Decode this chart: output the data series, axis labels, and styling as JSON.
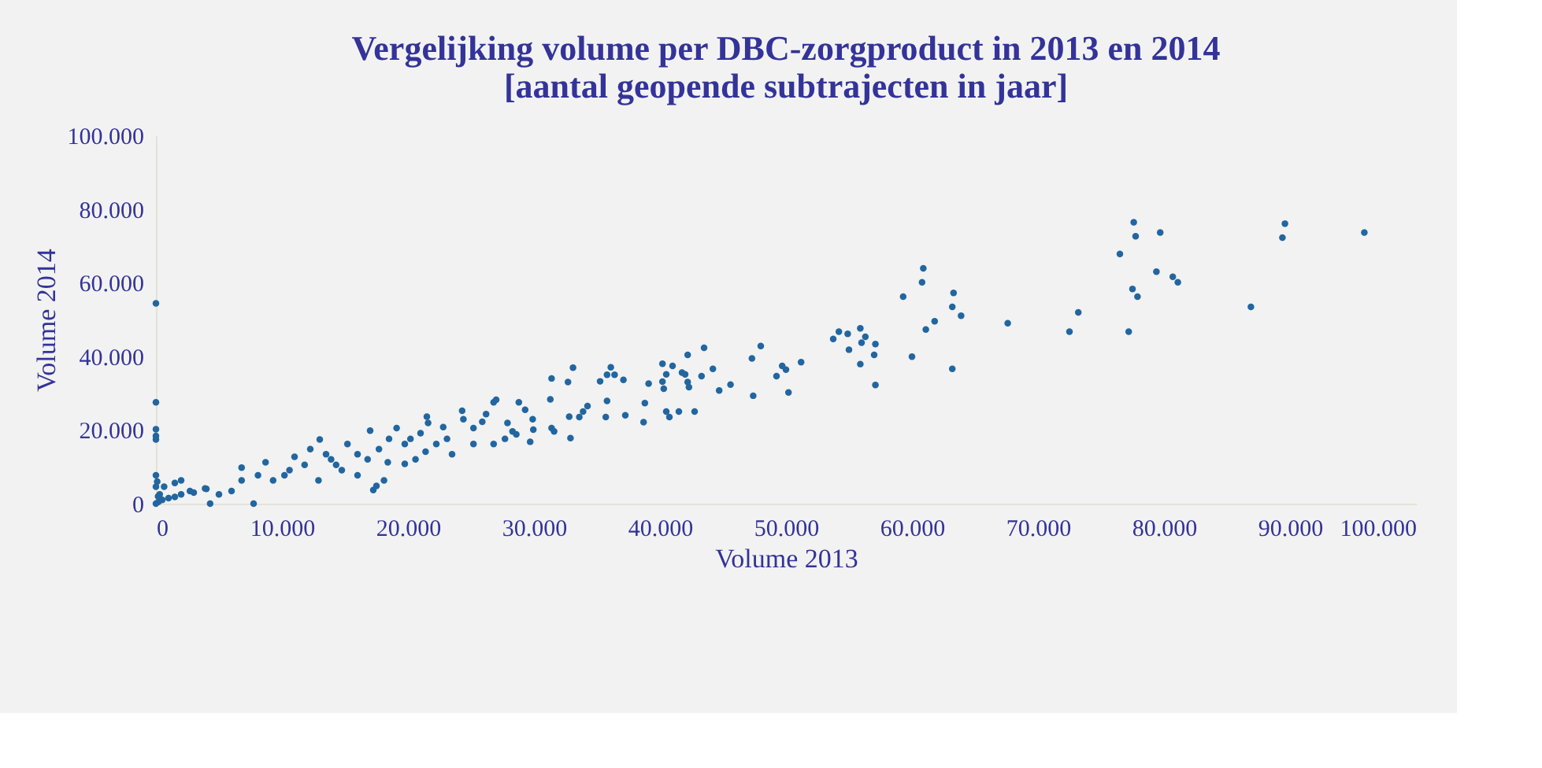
{
  "chart_data": {
    "type": "scatter",
    "title": [
      "Vergelijking volume per DBC-zorgproduct in 2013 en 2014",
      "[aantal geopende subtrajecten in jaar]"
    ],
    "xlabel": "Volume 2013",
    "ylabel": "Volume 2014",
    "marker": "circle",
    "grid": false,
    "legend": false,
    "xlim": [
      0,
      100000
    ],
    "ylim": [
      0,
      100000
    ],
    "xticks": [
      {
        "value": 0,
        "label": "0"
      },
      {
        "value": 10000,
        "label": "10.000"
      },
      {
        "value": 20000,
        "label": "20.000"
      },
      {
        "value": 30000,
        "label": "30.000"
      },
      {
        "value": 40000,
        "label": "40.000"
      },
      {
        "value": 50000,
        "label": "50.000"
      },
      {
        "value": 60000,
        "label": "60.000"
      },
      {
        "value": 70000,
        "label": "70.000"
      },
      {
        "value": 80000,
        "label": "80.000"
      },
      {
        "value": 90000,
        "label": "90.000"
      },
      {
        "value": 100000,
        "label": "100.000"
      }
    ],
    "yticks": [
      {
        "value": 0,
        "label": "0"
      },
      {
        "value": 20000,
        "label": "20.000"
      },
      {
        "value": 40000,
        "label": "40.000"
      },
      {
        "value": 60000,
        "label": "60.000"
      },
      {
        "value": 80000,
        "label": "80.000"
      },
      {
        "value": 100000,
        "label": "100.000"
      }
    ],
    "series": [
      {
        "color": "#2266a0",
        "x": [
          0,
          0,
          0,
          0,
          0,
          0,
          0,
          0,
          200,
          500,
          1000,
          1500,
          2000,
          3000,
          4000,
          5000,
          300,
          100,
          170,
          650,
          1500,
          2000,
          2700,
          3900,
          4300,
          6000,
          6800,
          6800,
          7750,
          8100,
          8700,
          9300,
          10200,
          10600,
          11000,
          11800,
          12250,
          12900,
          13000,
          13500,
          13900,
          14300,
          14750,
          15200,
          16000,
          16000,
          16800,
          17000,
          17250,
          17500,
          17700,
          18100,
          18400,
          18500,
          19100,
          19750,
          19750,
          20200,
          20600,
          21000,
          21400,
          21500,
          21600,
          22250,
          22800,
          23100,
          23500,
          24300,
          24400,
          25200,
          25200,
          25900,
          26200,
          26800,
          26800,
          27000,
          27700,
          27900,
          28300,
          28600,
          28800,
          29300,
          29700,
          29900,
          29950,
          31300,
          31400,
          31400,
          31600,
          32700,
          32800,
          32900,
          33100,
          33600,
          33900,
          34250,
          35250,
          35700,
          35800,
          35800,
          36100,
          36400,
          37100,
          37250,
          38700,
          38800,
          39100,
          40200,
          40200,
          40300,
          40500,
          40500,
          40750,
          41000,
          41500,
          41750,
          42000,
          42200,
          42200,
          42300,
          42750,
          43300,
          43500,
          44200,
          44700,
          45600,
          47300,
          47400,
          48000,
          49250,
          49700,
          50000,
          50200,
          51200,
          53750,
          54200,
          54900,
          55000,
          55900,
          55900,
          56000,
          56300,
          57000,
          57100,
          57100,
          59300,
          60000,
          60800,
          60900,
          61100,
          61800,
          63200,
          63200,
          63300,
          63900,
          67600,
          72500,
          73200,
          76500,
          77200,
          77500,
          77600,
          77750,
          77900,
          79400,
          79700,
          80700,
          81100,
          86900,
          89400,
          89600,
          95900
        ],
        "values": [
          54400,
          27500,
          20200,
          18400,
          17400,
          7700,
          4600,
          0,
          500,
          1000,
          1500,
          1800,
          2500,
          3000,
          4000,
          2500,
          2500,
          6000,
          2000,
          4600,
          5600,
          6300,
          3400,
          4100,
          0,
          3400,
          9800,
          6300,
          0,
          7700,
          11200,
          6300,
          7700,
          9100,
          12700,
          10500,
          14800,
          6300,
          17400,
          13400,
          12000,
          10500,
          9100,
          16200,
          13400,
          7700,
          12000,
          19800,
          3700,
          4800,
          14800,
          6300,
          11200,
          17600,
          20500,
          16200,
          10800,
          17600,
          12000,
          19100,
          14100,
          23600,
          21900,
          16200,
          20800,
          17600,
          13400,
          25200,
          22900,
          20500,
          16200,
          22200,
          24300,
          27500,
          16200,
          28200,
          17600,
          21900,
          19600,
          18800,
          27500,
          25500,
          16800,
          22900,
          20100,
          28300,
          34000,
          20500,
          19600,
          33000,
          23600,
          17800,
          36900,
          23500,
          25000,
          26500,
          33200,
          23500,
          35000,
          27900,
          37000,
          35000,
          33600,
          24000,
          22100,
          27300,
          32600,
          38000,
          33100,
          31200,
          35100,
          25000,
          23500,
          37400,
          25000,
          35600,
          35100,
          40400,
          33000,
          31600,
          25000,
          34600,
          42300,
          36600,
          30700,
          32300,
          39400,
          29300,
          42800,
          34600,
          37400,
          36400,
          30200,
          38400,
          44700,
          46700,
          46100,
          41800,
          47600,
          37900,
          43700,
          45300,
          40400,
          43300,
          32200,
          56200,
          39900,
          60100,
          63900,
          47300,
          49500,
          53400,
          36600,
          57200,
          51000,
          49000,
          46700,
          51900,
          67800,
          46700,
          58300,
          76400,
          72600,
          56200,
          63000,
          73600,
          61600,
          60100,
          53400,
          72200,
          76000,
          73600
        ]
      }
    ]
  }
}
